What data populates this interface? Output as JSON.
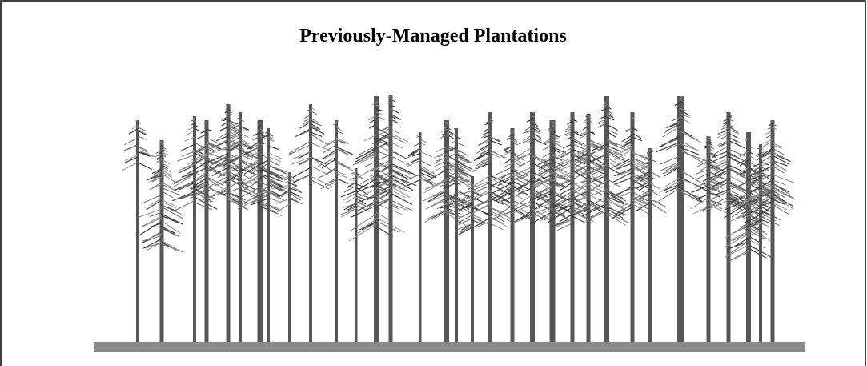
{
  "header": {
    "title": "Previously-Managed Plantations"
  }
}
